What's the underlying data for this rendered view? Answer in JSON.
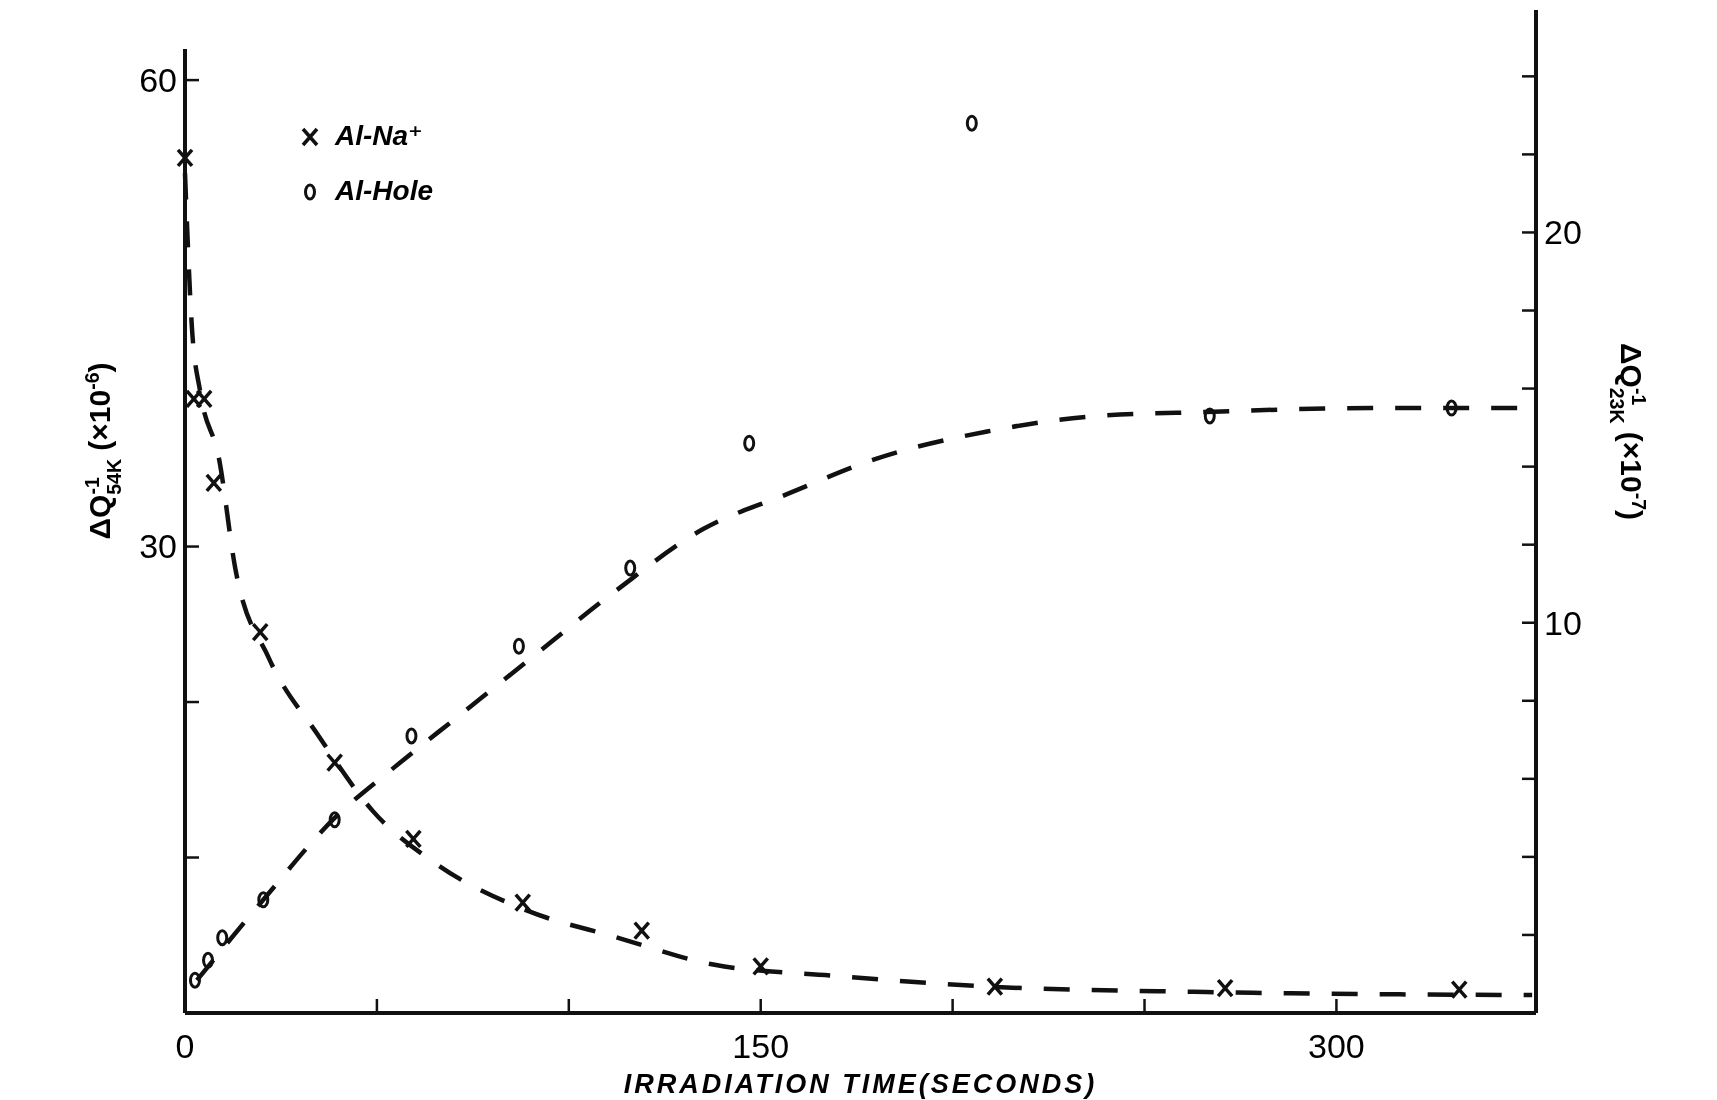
{
  "chart_data": {
    "type": "scatter",
    "xlabel": "IRRADIATION TIME(SECONDS)",
    "ylabel": "ΔQ$^{-1}$$_{54K}$ (×10$^{-6}$)",
    "y2label": "ΔQ$^{-1}$$_{23K}$ (×10$^{-7}$)",
    "xlim": [
      0,
      352
    ],
    "xticks": [
      0,
      {
        "value": 50,
        "label": null
      },
      {
        "value": 100,
        "label": null
      },
      150,
      {
        "value": 200,
        "label": null
      },
      {
        "value": 250,
        "label": null
      },
      300
    ],
    "ylim": [
      0,
      62
    ],
    "yticks": [
      {
        "value": 10,
        "label": null
      },
      {
        "value": 20,
        "label": null
      },
      30,
      60
    ],
    "y2lim": [
      0,
      25.7
    ],
    "y2ticks": [
      {
        "value": 2,
        "label": null
      },
      {
        "value": 4,
        "label": null
      },
      {
        "value": 6,
        "label": null
      },
      {
        "value": 8,
        "label": null
      },
      10,
      {
        "value": 12,
        "label": null
      },
      {
        "value": 14,
        "label": null
      },
      {
        "value": 16,
        "label": null
      },
      {
        "value": 18,
        "label": null
      },
      20,
      {
        "value": 22,
        "label": null
      },
      {
        "value": 24,
        "label": null
      }
    ],
    "grid": false,
    "legend": "top left",
    "series": [
      {
        "name": "Al-Na⁺",
        "marker": "cross",
        "color": "#111111",
        "x": [
          0,
          2.3,
          5,
          7.5,
          19.6,
          39,
          59.5,
          88,
          119,
          150,
          211,
          271,
          332
        ],
        "values": [
          55.0,
          39.5,
          39.5,
          34.1,
          24.5,
          16.1,
          11.2,
          7.1,
          5.3,
          3.0,
          1.7,
          1.6,
          1.5
        ]
      },
      {
        "name": "Al-Hole",
        "marker": "circle",
        "axis": "y2",
        "color": "#111111",
        "x": [
          2.6,
          6,
          9.7,
          20.4,
          39,
          59,
          87,
          116,
          147,
          205,
          267,
          330
        ],
        "values": [
          0.84,
          1.35,
          1.93,
          2.9,
          4.95,
          7.1,
          9.4,
          11.4,
          14.6,
          22.8,
          15.3,
          15.5
        ]
      },
      {
        "type": "line",
        "line_style": "dashed",
        "marker": "none",
        "color": "#111111",
        "x": [
          0,
          1.8,
          4.0,
          8.9,
          13.1,
          21.7,
          34.6,
          48.9,
          66,
          89,
          112,
          138,
          169,
          209,
          266,
          351
        ],
        "values": [
          54.0,
          44.1,
          39.9,
          35.6,
          28.6,
          22.9,
          17.9,
          13.0,
          9.5,
          6.6,
          4.9,
          3.1,
          2.4,
          1.7,
          1.35,
          1.15
        ]
      },
      {
        "type": "line",
        "line_style": "dashed",
        "marker": "none",
        "axis": "y2",
        "color": "#111111",
        "x": [
          3.1,
          20.4,
          39,
          54.6,
          71.8,
          89,
          112,
          135,
          157,
          180,
          209,
          238,
          266,
          309,
          351
        ],
        "values": [
          0.84,
          2.9,
          5.0,
          6.3,
          7.65,
          9.0,
          10.8,
          12.4,
          13.3,
          14.2,
          14.9,
          15.3,
          15.4,
          15.5,
          15.5
        ]
      }
    ]
  }
}
